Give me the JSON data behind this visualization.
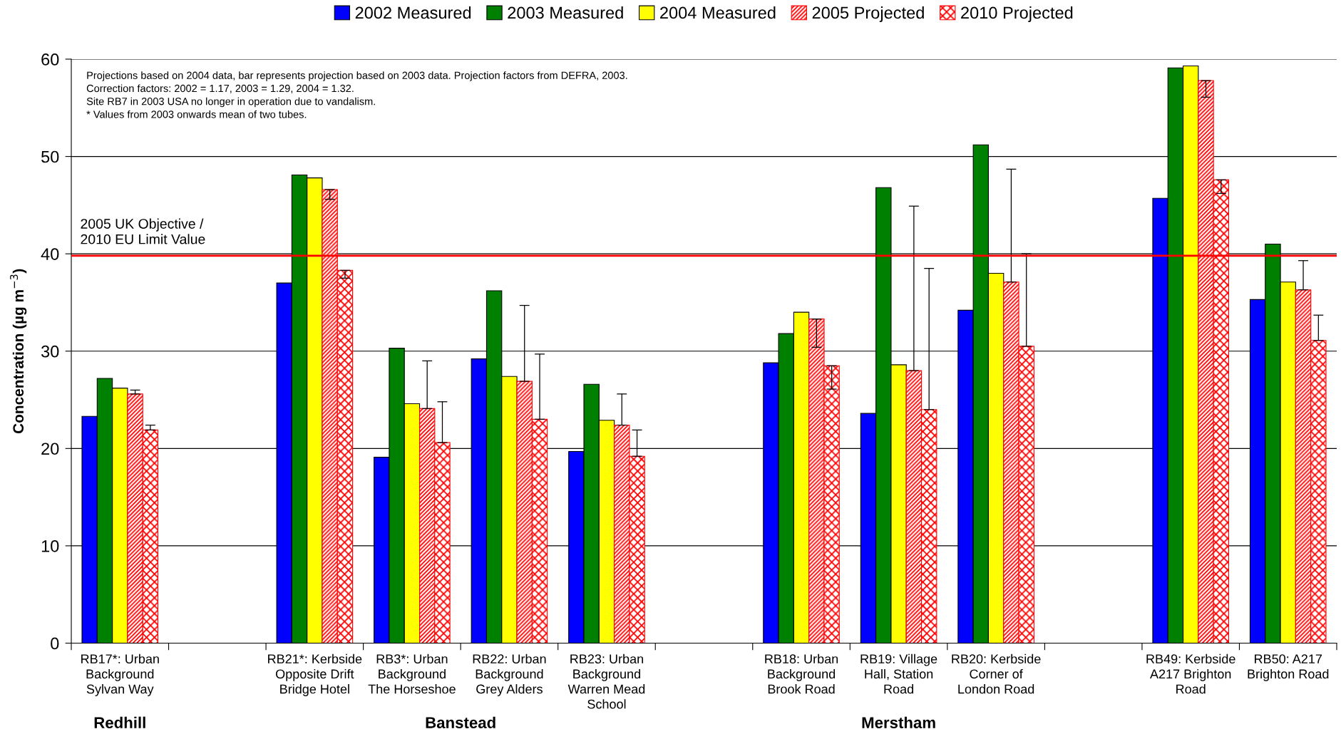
{
  "chart_data": {
    "type": "bar",
    "ylabel": "Concentration (µg m$^{−3}$)",
    "categories": [
      "RB17*: Urban\nBackground\nSylvan Way",
      null,
      "RB21*: Kerbside\nOpposite Drift\nBridge Hotel",
      "RB3*: Urban\nBackground\nThe Horseshoe",
      "RB22: Urban\nBackground\nGrey Alders",
      "RB23: Urban\nBackground\nWarren Mead\nSchool",
      null,
      "RB18: Urban\nBackground\nBrook Road",
      "RB19: Village\nHall, Station\nRoad",
      "RB20: Kerbside\nCorner of\nLondon Road",
      null,
      "RB49: Kerbside\nA217 Brighton\nRoad",
      "RB50: A217\nBrighton Road"
    ],
    "series": [
      {
        "name": "2002 Measured",
        "color": "#0000ff",
        "values": [
          23.3,
          null,
          37.0,
          19.1,
          29.2,
          19.7,
          null,
          28.8,
          23.6,
          34.2,
          null,
          45.7,
          35.3
        ]
      },
      {
        "name": "2003 Measured",
        "color": "#008000",
        "values": [
          27.2,
          null,
          48.1,
          30.3,
          36.2,
          26.6,
          null,
          31.8,
          46.8,
          51.2,
          null,
          59.1,
          41.0
        ]
      },
      {
        "name": "2004 Measured",
        "color": "#ffff00",
        "values": [
          26.2,
          null,
          47.8,
          24.6,
          27.4,
          22.9,
          null,
          34.0,
          28.6,
          38.0,
          null,
          59.3,
          37.1
        ]
      },
      {
        "name": "2005 Projected",
        "color": "#ff0000",
        "values": [
          25.6,
          null,
          46.6,
          24.1,
          26.9,
          22.4,
          null,
          33.3,
          28.0,
          37.1,
          null,
          57.8,
          36.3
        ],
        "errors": [
          [
            25.6,
            26.0
          ],
          null,
          [
            45.6,
            46.6
          ],
          [
            24.1,
            29.0
          ],
          [
            26.9,
            34.7
          ],
          [
            22.4,
            25.6
          ],
          null,
          [
            30.4,
            33.3
          ],
          [
            28.0,
            44.9
          ],
          [
            37.1,
            48.7
          ],
          null,
          [
            56.1,
            57.8
          ],
          [
            36.3,
            39.3
          ]
        ]
      },
      {
        "name": "2010 Projected",
        "color": "#ff0000",
        "values": [
          21.9,
          null,
          38.3,
          20.6,
          23.0,
          19.2,
          null,
          28.5,
          24.0,
          30.5,
          null,
          47.6,
          31.1
        ],
        "errors": [
          [
            21.9,
            22.4
          ],
          null,
          [
            37.5,
            38.3
          ],
          [
            20.6,
            24.8
          ],
          [
            23.0,
            29.7
          ],
          [
            19.2,
            21.9
          ],
          null,
          [
            26.1,
            28.5
          ],
          [
            24.0,
            38.5
          ],
          [
            30.5,
            40.0
          ],
          null,
          [
            46.2,
            47.6
          ],
          [
            31.1,
            33.7
          ]
        ]
      }
    ],
    "ylim": [
      0,
      60
    ],
    "yticks": [
      0,
      10,
      20,
      30,
      40,
      50,
      60
    ],
    "grid": "y",
    "legend": "top",
    "ref_lines": [
      {
        "axis": "y",
        "value": 39.8,
        "label": "2005 UK Objective /\n2010 EU Limit Value",
        "color": "#ff0000"
      }
    ],
    "annotations": [
      "Projections based on 2004 data, bar represents projection based on 2003 data. Projection factors from DEFRA, 2003.\nCorrection factors: 2002 = 1.17, 2003 = 1.29, 2004 = 1.32.\nSite RB7 in 2003 USA no longer in operation due to vandalism.\n* Values from 2003 onwards mean of two tubes.",
      "Redhill",
      "Banstead",
      "Merstham"
    ]
  }
}
